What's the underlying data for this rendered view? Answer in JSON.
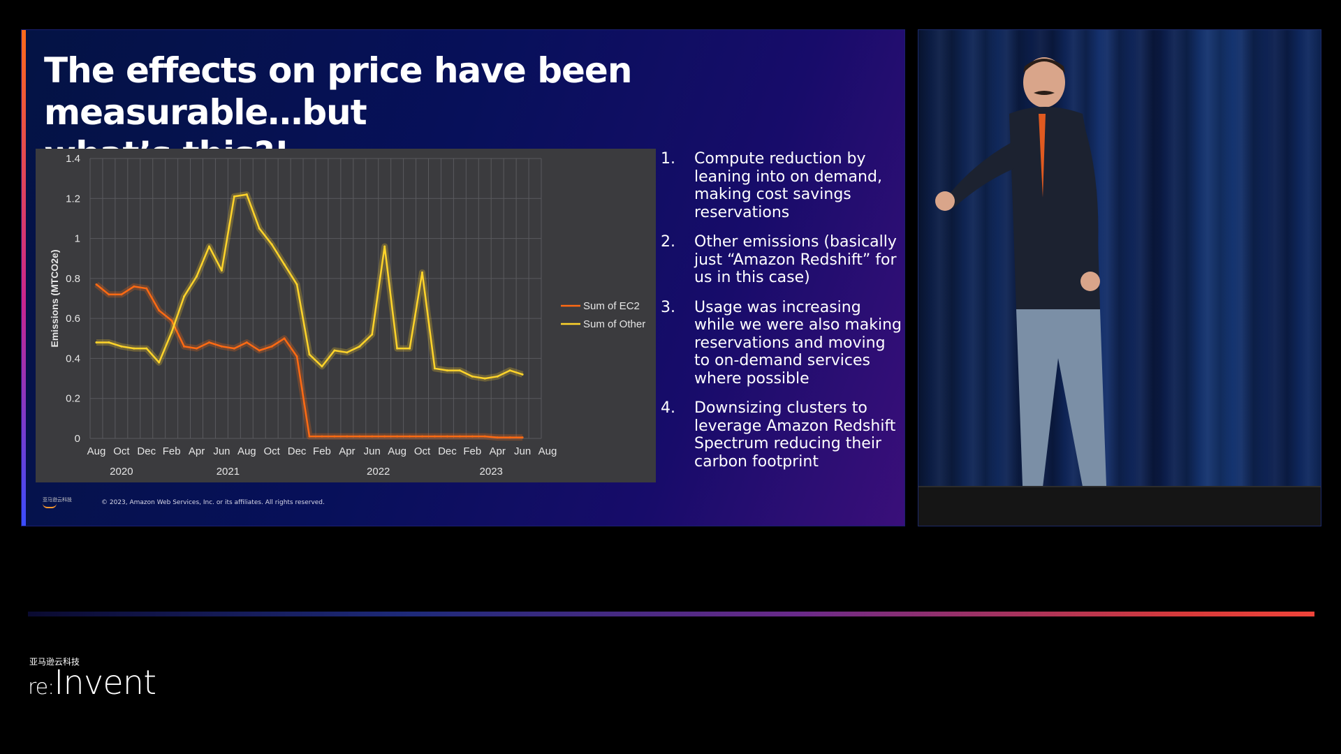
{
  "slide": {
    "title": "The effects on price have been measurable…but\nwhat’s this?!",
    "copyright": "© 2023, Amazon Web Services, Inc. or its affiliates. All rights reserved.",
    "footer_logo_text": "亚马逊云科技",
    "points": [
      {
        "num": "1.",
        "text": "Compute reduction by leaning into on demand, making cost savings reservations"
      },
      {
        "num": "2.",
        "text": "Other emissions (basically just “Amazon Redshift” for us in this case)"
      },
      {
        "num": "3.",
        "text": "Usage was increasing while we were also making reservations and moving to on-demand services where possible"
      },
      {
        "num": "4.",
        "text": "Downsizing clusters to leverage Amazon Redshift Spectrum reducing their carbon footprint"
      }
    ]
  },
  "chart_data": {
    "type": "line",
    "ylabel": "Emissions (MTCO2e)",
    "ylim": [
      0,
      1.4
    ],
    "yticks": [
      "0",
      "0.2",
      "0.4",
      "0.6",
      "0.8",
      "1",
      "1.2",
      "1.4"
    ],
    "xtick_labels": [
      "Aug",
      "Oct",
      "Dec",
      "Feb",
      "Apr",
      "Jun",
      "Aug",
      "Oct",
      "Dec",
      "Feb",
      "Apr",
      "Jun",
      "Aug",
      "Oct",
      "Dec",
      "Feb",
      "Apr",
      "Jun",
      "Aug"
    ],
    "year_labels": [
      "2020",
      "2021",
      "2022",
      "2023"
    ],
    "x": [
      "2020-08",
      "2020-09",
      "2020-10",
      "2020-11",
      "2020-12",
      "2021-01",
      "2021-02",
      "2021-03",
      "2021-04",
      "2021-05",
      "2021-06",
      "2021-07",
      "2021-08",
      "2021-09",
      "2021-10",
      "2021-11",
      "2021-12",
      "2022-01",
      "2022-02",
      "2022-03",
      "2022-04",
      "2022-05",
      "2022-06",
      "2022-07",
      "2022-08",
      "2022-09",
      "2022-10",
      "2022-11",
      "2022-12",
      "2023-01",
      "2023-02",
      "2023-03",
      "2023-04",
      "2023-05",
      "2023-06"
    ],
    "series": [
      {
        "name": "Sum of EC2",
        "color": "#ff6a13",
        "values": [
          0.77,
          0.72,
          0.72,
          0.76,
          0.75,
          0.64,
          0.59,
          0.46,
          0.45,
          0.48,
          0.46,
          0.45,
          0.48,
          0.44,
          0.46,
          0.5,
          0.41,
          0.01,
          0.01,
          0.01,
          0.01,
          0.01,
          0.01,
          0.01,
          0.01,
          0.01,
          0.01,
          0.01,
          0.01,
          0.01,
          0.01,
          0.01,
          0.005,
          0.005,
          0.005
        ]
      },
      {
        "name": "Sum of Other",
        "color": "#ffd42a",
        "values": [
          0.48,
          0.48,
          0.46,
          0.45,
          0.45,
          0.38,
          0.53,
          0.71,
          0.81,
          0.96,
          0.84,
          1.21,
          1.22,
          1.05,
          0.97,
          0.87,
          0.77,
          0.42,
          0.36,
          0.44,
          0.43,
          0.46,
          0.52,
          0.96,
          0.45,
          0.45,
          0.83,
          0.35,
          0.34,
          0.34,
          0.31,
          0.3,
          0.31,
          0.34,
          0.32
        ]
      }
    ],
    "legend_position": "right",
    "grid": true
  },
  "branding": {
    "cn_label": "亚马逊云科技",
    "re_part": "re:",
    "invent_part": "Invent"
  }
}
